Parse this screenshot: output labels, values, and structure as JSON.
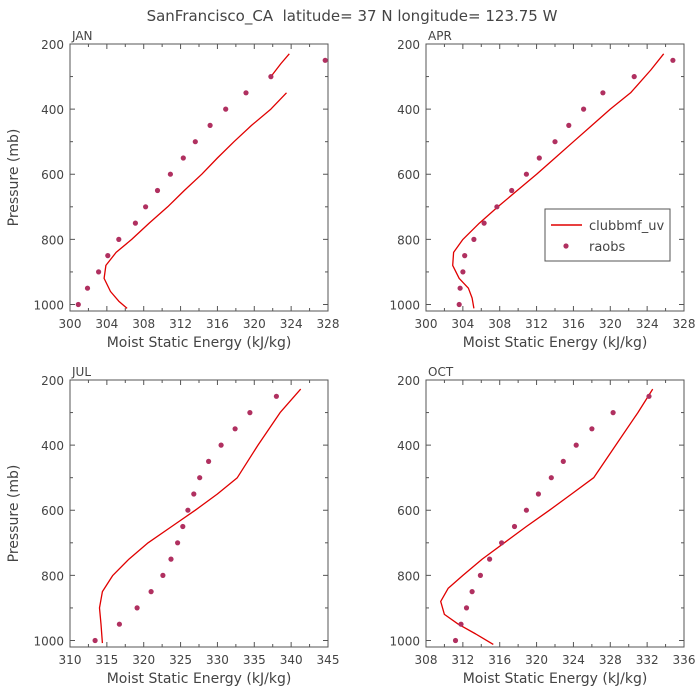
{
  "figure": {
    "title": "SanFrancisco_CA  latitude= 37 N longitude= 123.75 W",
    "legend": {
      "model_label": "clubbmf_uv",
      "obs_label": "raobs"
    },
    "colors": {
      "model": "#e00000",
      "obs": "#b03060",
      "axis": "#555555",
      "text": "#444444"
    }
  },
  "chart_data": [
    {
      "type": "line",
      "panel": "JAN",
      "xlabel": "Moist Static Energy (kJ/kg)",
      "ylabel": "Pressure (mb)",
      "xlim": [
        300,
        328
      ],
      "ylim": [
        1020,
        200
      ],
      "xticks": [
        300,
        304,
        308,
        312,
        316,
        320,
        324,
        328
      ],
      "yticks": [
        200,
        400,
        600,
        800,
        1000
      ],
      "series": [
        {
          "name": "clubbmf_uv",
          "kind": "line",
          "x": [
            306.2,
            305.3,
            304.4,
            303.7,
            303.9,
            305.0,
            306.7,
            308.6,
            310.6,
            312.4,
            314.3,
            316.0,
            317.8,
            319.7,
            321.8,
            323.5
          ],
          "y": [
            1012,
            990,
            960,
            920,
            880,
            840,
            800,
            750,
            700,
            650,
            600,
            550,
            500,
            450,
            400,
            350
          ]
        },
        {
          "name": "clubbmf_uv",
          "kind": "line",
          "x": [
            321.8,
            322.9,
            323.8
          ],
          "y": [
            300,
            260,
            230
          ]
        },
        {
          "name": "raobs",
          "kind": "points",
          "x": [
            300.9,
            301.9,
            303.1,
            304.1,
            305.3,
            307.1,
            308.2,
            309.5,
            310.9,
            312.3,
            313.6,
            315.2,
            316.9,
            319.1,
            321.8,
            327.7
          ],
          "y": [
            1000,
            950,
            900,
            850,
            800,
            750,
            700,
            650,
            600,
            550,
            500,
            450,
            400,
            350,
            300,
            250
          ]
        }
      ]
    },
    {
      "type": "line",
      "panel": "APR",
      "xlabel": "Moist Static Energy (kJ/kg)",
      "ylabel": "",
      "xlim": [
        300,
        328
      ],
      "ylim": [
        1020,
        200
      ],
      "xticks": [
        300,
        304,
        308,
        312,
        316,
        320,
        324,
        328
      ],
      "yticks": [
        200,
        400,
        600,
        800,
        1000
      ],
      "series": [
        {
          "name": "clubbmf_uv",
          "kind": "line",
          "x": [
            305.2,
            305.0,
            304.6,
            303.6,
            302.9,
            303.0,
            304.0,
            305.8,
            307.8,
            309.9,
            312.0,
            314.0,
            316.0,
            318.0,
            320.0,
            322.2,
            324.4,
            325.8
          ],
          "y": [
            1012,
            980,
            950,
            920,
            880,
            840,
            800,
            750,
            700,
            650,
            600,
            550,
            500,
            450,
            400,
            350,
            280,
            230
          ]
        },
        {
          "name": "raobs",
          "kind": "points",
          "x": [
            303.6,
            303.7,
            304.0,
            304.2,
            305.2,
            306.3,
            307.7,
            309.3,
            310.9,
            312.3,
            314.0,
            315.5,
            317.1,
            319.2,
            322.6,
            326.8
          ],
          "y": [
            1000,
            950,
            900,
            850,
            800,
            750,
            700,
            650,
            600,
            550,
            500,
            450,
            400,
            350,
            300,
            250
          ]
        }
      ]
    },
    {
      "type": "line",
      "panel": "JUL",
      "xlabel": "Moist Static Energy (kJ/kg)",
      "ylabel": "Pressure (mb)",
      "xlim": [
        310,
        345
      ],
      "ylim": [
        1020,
        200
      ],
      "xticks": [
        310,
        315,
        320,
        325,
        330,
        335,
        340,
        345
      ],
      "yticks": [
        200,
        400,
        600,
        800,
        1000
      ],
      "series": [
        {
          "name": "clubbmf_uv",
          "kind": "line",
          "x": [
            314.4,
            314.2,
            314.0,
            314.4,
            315.8,
            318.0,
            320.6,
            323.8,
            327.0,
            330.0,
            332.7,
            335.5,
            338.5,
            341.3
          ],
          "y": [
            1008,
            950,
            900,
            850,
            800,
            750,
            700,
            650,
            600,
            550,
            500,
            400,
            300,
            228
          ]
        },
        {
          "name": "raobs",
          "kind": "points",
          "x": [
            313.4,
            316.7,
            319.1,
            321.0,
            322.6,
            323.7,
            324.6,
            325.3,
            326.0,
            326.8,
            327.6,
            328.8,
            330.5,
            332.4,
            334.4,
            338.0
          ],
          "y": [
            1000,
            950,
            900,
            850,
            800,
            750,
            700,
            650,
            600,
            550,
            500,
            450,
            400,
            350,
            300,
            250
          ]
        }
      ]
    },
    {
      "type": "line",
      "panel": "OCT",
      "xlabel": "Moist Static Energy (kJ/kg)",
      "ylabel": "",
      "xlim": [
        308,
        336
      ],
      "ylim": [
        1020,
        200
      ],
      "xticks": [
        308,
        312,
        316,
        320,
        324,
        328,
        332,
        336
      ],
      "yticks": [
        200,
        400,
        600,
        800,
        1000
      ],
      "series": [
        {
          "name": "clubbmf_uv",
          "kind": "line",
          "x": [
            315.3,
            313.4,
            311.5,
            310.0,
            309.6,
            310.4,
            312.0,
            314.1,
            316.5,
            318.9,
            321.4,
            323.8,
            326.2,
            328.6,
            331.0,
            332.6
          ],
          "y": [
            1012,
            980,
            950,
            920,
            880,
            840,
            800,
            750,
            700,
            650,
            600,
            550,
            500,
            400,
            300,
            228
          ]
        },
        {
          "name": "raobs",
          "kind": "points",
          "x": [
            311.2,
            311.8,
            312.4,
            313.0,
            313.9,
            314.9,
            316.2,
            317.6,
            318.9,
            320.2,
            321.6,
            322.9,
            324.3,
            326.0,
            328.3,
            332.2
          ],
          "y": [
            1000,
            950,
            900,
            850,
            800,
            750,
            700,
            650,
            600,
            550,
            500,
            450,
            400,
            350,
            300,
            250
          ]
        }
      ]
    }
  ]
}
